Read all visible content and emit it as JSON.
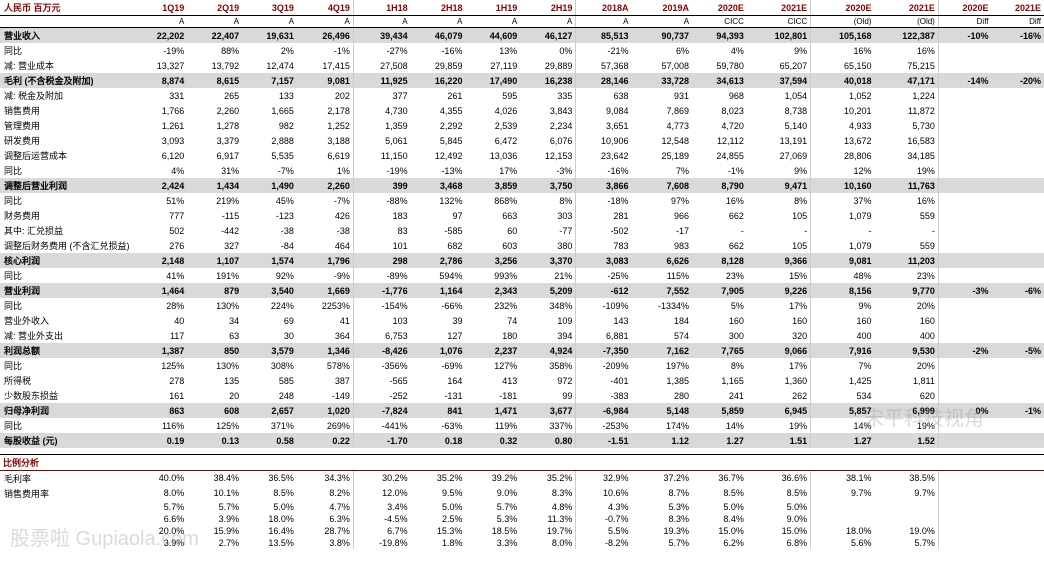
{
  "headers": [
    "1Q19",
    "2Q19",
    "3Q19",
    "4Q19",
    "1H18",
    "2H18",
    "1H19",
    "2H19",
    "2018A",
    "2019A",
    "2020E",
    "2021E",
    "2020E",
    "2021E",
    "2020E",
    "2021E"
  ],
  "sub": [
    "A",
    "A",
    "A",
    "A",
    "A",
    "A",
    "A",
    "A",
    "A",
    "A",
    "CICC",
    "CICC",
    "(Old)",
    "(Old)",
    "Diff",
    "Diff"
  ],
  "rows": [
    {
      "l": "营业收入",
      "hl": 1,
      "v": [
        "22,202",
        "22,407",
        "19,631",
        "26,496",
        "39,434",
        "46,079",
        "44,609",
        "46,127",
        "85,513",
        "90,737",
        "94,393",
        "102,801",
        "105,168",
        "122,387",
        "-10%",
        "-16%"
      ]
    },
    {
      "l": "同比",
      "v": [
        "-19%",
        "88%",
        "2%",
        "-1%",
        "-27%",
        "-16%",
        "13%",
        "0%",
        "-21%",
        "6%",
        "4%",
        "9%",
        "16%",
        "16%",
        "",
        ""
      ]
    },
    {
      "l": "减: 营业成本",
      "v": [
        "13,327",
        "13,792",
        "12,474",
        "17,415",
        "27,508",
        "29,859",
        "27,119",
        "29,889",
        "57,368",
        "57,008",
        "59,780",
        "65,207",
        "65,150",
        "75,215",
        "",
        ""
      ]
    },
    {
      "l": "毛利 (不含税金及附加)",
      "hl": 1,
      "v": [
        "8,874",
        "8,615",
        "7,157",
        "9,081",
        "11,925",
        "16,220",
        "17,490",
        "16,238",
        "28,146",
        "33,728",
        "34,613",
        "37,594",
        "40,018",
        "47,171",
        "-14%",
        "-20%"
      ]
    },
    {
      "l": "减: 税金及附加",
      "v": [
        "331",
        "265",
        "133",
        "202",
        "377",
        "261",
        "595",
        "335",
        "638",
        "931",
        "968",
        "1,054",
        "1,052",
        "1,224",
        "",
        ""
      ]
    },
    {
      "l": "销售费用",
      "v": [
        "1,766",
        "2,260",
        "1,665",
        "2,178",
        "4,730",
        "4,355",
        "4,026",
        "3,843",
        "9,084",
        "7,869",
        "8,023",
        "8,738",
        "10,201",
        "11,872",
        "",
        ""
      ]
    },
    {
      "l": "管理费用",
      "v": [
        "1,261",
        "1,278",
        "982",
        "1,252",
        "1,359",
        "2,292",
        "2,539",
        "2,234",
        "3,651",
        "4,773",
        "4,720",
        "5,140",
        "4,933",
        "5,730",
        "",
        ""
      ]
    },
    {
      "l": "研发费用",
      "v": [
        "3,093",
        "3,379",
        "2,888",
        "3,188",
        "5,061",
        "5,845",
        "6,472",
        "6,076",
        "10,906",
        "12,548",
        "12,112",
        "13,191",
        "13,672",
        "16,583",
        "",
        ""
      ]
    },
    {
      "l": "调整后运营成本",
      "v": [
        "6,120",
        "6,917",
        "5,535",
        "6,619",
        "11,150",
        "12,492",
        "13,036",
        "12,153",
        "23,642",
        "25,189",
        "24,855",
        "27,069",
        "28,806",
        "34,185",
        "",
        ""
      ]
    },
    {
      "l": "同比",
      "v": [
        "4%",
        "31%",
        "-7%",
        "1%",
        "-19%",
        "-13%",
        "17%",
        "-3%",
        "-16%",
        "7%",
        "-1%",
        "9%",
        "12%",
        "19%",
        "",
        ""
      ]
    },
    {
      "l": "调整后营业利润",
      "hl": 1,
      "v": [
        "2,424",
        "1,434",
        "1,490",
        "2,260",
        "399",
        "3,468",
        "3,859",
        "3,750",
        "3,866",
        "7,608",
        "8,790",
        "9,471",
        "10,160",
        "11,763",
        "",
        ""
      ]
    },
    {
      "l": "同比",
      "v": [
        "51%",
        "219%",
        "45%",
        "-7%",
        "-88%",
        "132%",
        "868%",
        "8%",
        "-18%",
        "97%",
        "16%",
        "8%",
        "37%",
        "16%",
        "",
        ""
      ]
    },
    {
      "l": "财务费用",
      "v": [
        "777",
        "-115",
        "-123",
        "426",
        "183",
        "97",
        "663",
        "303",
        "281",
        "966",
        "662",
        "105",
        "1,079",
        "559",
        "",
        ""
      ]
    },
    {
      "l": "其中: 汇兑损益",
      "v": [
        "502",
        "-442",
        "-38",
        "-38",
        "83",
        "-585",
        "60",
        "-77",
        "-502",
        "-17",
        "-",
        "-",
        "-",
        "-",
        "",
        ""
      ]
    },
    {
      "l": "调整后财务费用 (不含汇兑损益)",
      "v": [
        "276",
        "327",
        "-84",
        "464",
        "101",
        "682",
        "603",
        "380",
        "783",
        "983",
        "662",
        "105",
        "1,079",
        "559",
        "",
        ""
      ]
    },
    {
      "l": "核心利润",
      "hl": 1,
      "v": [
        "2,148",
        "1,107",
        "1,574",
        "1,796",
        "298",
        "2,786",
        "3,256",
        "3,370",
        "3,083",
        "6,626",
        "8,128",
        "9,366",
        "9,081",
        "11,203",
        "",
        ""
      ]
    },
    {
      "l": "同比",
      "v": [
        "41%",
        "191%",
        "92%",
        "-9%",
        "-89%",
        "594%",
        "993%",
        "21%",
        "-25%",
        "115%",
        "23%",
        "15%",
        "48%",
        "23%",
        "",
        ""
      ]
    },
    {
      "l": "营业利润",
      "hl": 1,
      "v": [
        "1,464",
        "879",
        "3,540",
        "1,669",
        "-1,776",
        "1,164",
        "2,343",
        "5,209",
        "-612",
        "7,552",
        "7,905",
        "9,226",
        "8,156",
        "9,770",
        "-3%",
        "-6%"
      ]
    },
    {
      "l": "同比",
      "v": [
        "28%",
        "130%",
        "224%",
        "2253%",
        "-154%",
        "-66%",
        "232%",
        "348%",
        "-109%",
        "-1334%",
        "5%",
        "17%",
        "9%",
        "20%",
        "",
        ""
      ]
    },
    {
      "l": "营业外收入",
      "v": [
        "40",
        "34",
        "69",
        "41",
        "103",
        "39",
        "74",
        "109",
        "143",
        "184",
        "160",
        "160",
        "160",
        "160",
        "",
        ""
      ]
    },
    {
      "l": "减: 营业外支出",
      "v": [
        "117",
        "63",
        "30",
        "364",
        "6,753",
        "127",
        "180",
        "394",
        "6,881",
        "574",
        "300",
        "320",
        "400",
        "400",
        "",
        ""
      ]
    },
    {
      "l": "利润总额",
      "hl": 1,
      "v": [
        "1,387",
        "850",
        "3,579",
        "1,346",
        "-8,426",
        "1,076",
        "2,237",
        "4,924",
        "-7,350",
        "7,162",
        "7,765",
        "9,066",
        "7,916",
        "9,530",
        "-2%",
        "-5%"
      ]
    },
    {
      "l": "同比",
      "v": [
        "125%",
        "130%",
        "308%",
        "578%",
        "-356%",
        "-69%",
        "127%",
        "358%",
        "-209%",
        "197%",
        "8%",
        "17%",
        "7%",
        "20%",
        "",
        ""
      ]
    },
    {
      "l": "所得税",
      "v": [
        "278",
        "135",
        "585",
        "387",
        "-565",
        "164",
        "413",
        "972",
        "-401",
        "1,385",
        "1,165",
        "1,360",
        "1,425",
        "1,811",
        "",
        ""
      ]
    },
    {
      "l": "少数股东损益",
      "v": [
        "161",
        "20",
        "248",
        "-149",
        "-252",
        "-131",
        "-181",
        "99",
        "-383",
        "280",
        "241",
        "262",
        "534",
        "620",
        "",
        ""
      ]
    },
    {
      "l": "归母净利润",
      "hl": 1,
      "v": [
        "863",
        "608",
        "2,657",
        "1,020",
        "-7,824",
        "841",
        "1,471",
        "3,677",
        "-6,984",
        "5,148",
        "5,859",
        "6,945",
        "5,857",
        "6,999",
        "0%",
        "-1%"
      ]
    },
    {
      "l": "同比",
      "v": [
        "116%",
        "125%",
        "371%",
        "269%",
        "-441%",
        "-63%",
        "119%",
        "337%",
        "-253%",
        "174%",
        "14%",
        "19%",
        "14%",
        "19%",
        "",
        ""
      ]
    },
    {
      "l": "每股收益 (元)",
      "hl": 1,
      "v": [
        "0.19",
        "0.13",
        "0.58",
        "0.22",
        "-1.70",
        "0.18",
        "0.32",
        "0.80",
        "-1.51",
        "1.12",
        "1.27",
        "1.51",
        "1.27",
        "1.52",
        "",
        ""
      ]
    }
  ],
  "section2_title": "比例分析",
  "ratios": [
    {
      "l": "毛利率",
      "v": [
        "40.0%",
        "38.4%",
        "36.5%",
        "34.3%",
        "30.2%",
        "35.2%",
        "39.2%",
        "35.2%",
        "32.9%",
        "37.2%",
        "36.7%",
        "36.6%",
        "38.1%",
        "38.5%",
        "",
        ""
      ]
    },
    {
      "l": "销售费用率",
      "v": [
        "8.0%",
        "10.1%",
        "8.5%",
        "8.2%",
        "12.0%",
        "9.5%",
        "9.0%",
        "8.3%",
        "10.6%",
        "8.7%",
        "8.5%",
        "8.5%",
        "9.7%",
        "9.7%",
        "",
        ""
      ]
    },
    {
      "l": "",
      "v": [
        "5.7%",
        "5.7%",
        "5.0%",
        "4.7%",
        "3.4%",
        "5.0%",
        "5.7%",
        "4.8%",
        "4.3%",
        "5.3%",
        "5.0%",
        "5.0%",
        "",
        "",
        "",
        ""
      ]
    },
    {
      "l": "",
      "v": [
        "6.6%",
        "3.9%",
        "18.0%",
        "6.3%",
        "-4.5%",
        "2.5%",
        "5.3%",
        "11.3%",
        "-0.7%",
        "8.3%",
        "8.4%",
        "9.0%",
        "",
        "",
        "",
        ""
      ]
    },
    {
      "l": "",
      "v": [
        "20.0%",
        "15.9%",
        "16.4%",
        "28.7%",
        "6.7%",
        "15.3%",
        "18.5%",
        "19.7%",
        "5.5%",
        "19.3%",
        "15.0%",
        "15.0%",
        "18.0%",
        "19.0%",
        "",
        ""
      ]
    },
    {
      "l": "",
      "v": [
        "3.9%",
        "2.7%",
        "13.5%",
        "3.8%",
        "-19.8%",
        "1.8%",
        "3.3%",
        "8.0%",
        "-8.2%",
        "5.7%",
        "6.2%",
        "6.8%",
        "5.6%",
        "5.7%",
        "",
        ""
      ]
    }
  ],
  "watermarks": {
    "left": "股票啦\nGupiaola.com",
    "right": "宋平科技视角"
  }
}
